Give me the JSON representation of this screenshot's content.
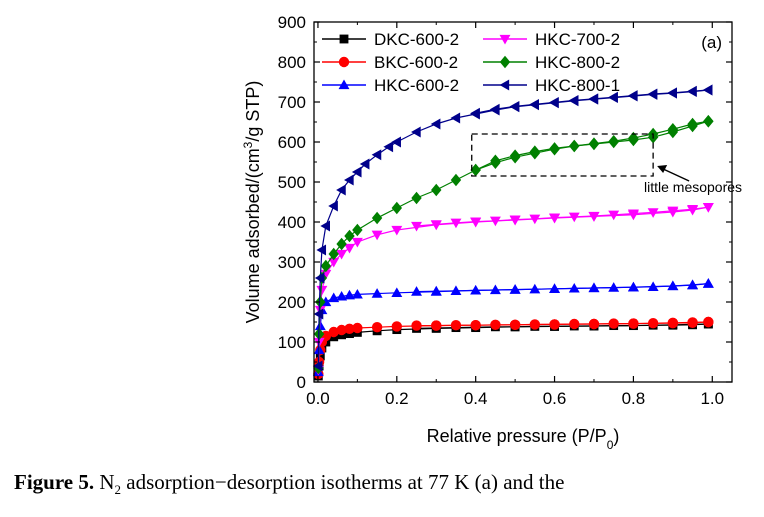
{
  "chart_data": {
    "type": "scatter",
    "xlabel": "Relative pressure (P/P0)",
    "ylabel": "Volume adsorbed/(cm3/g STP)",
    "xlim": [
      -0.01,
      1.05
    ],
    "ylim": [
      0,
      900
    ],
    "xticks": [
      "0.0",
      "0.2",
      "0.4",
      "0.6",
      "0.8",
      "1.0"
    ],
    "yticks": [
      "0",
      "100",
      "200",
      "300",
      "400",
      "500",
      "600",
      "700",
      "800",
      "900"
    ],
    "panel_label": "(a)",
    "annotation": "little mesopores",
    "annotation_box": {
      "x": [
        0.39,
        0.85
      ],
      "y": [
        515,
        620
      ]
    },
    "legend_position": "top-left",
    "series": [
      {
        "name": "DKC-600-2",
        "marker": "square",
        "color": "#000000",
        "adsorption": {
          "x": [
            0.001,
            0.003,
            0.006,
            0.01,
            0.02,
            0.04,
            0.06,
            0.08,
            0.1,
            0.15,
            0.2,
            0.3,
            0.4,
            0.5,
            0.6,
            0.7,
            0.8,
            0.9,
            0.95,
            0.99
          ],
          "y": [
            15,
            40,
            65,
            85,
            100,
            113,
            118,
            121,
            124,
            128,
            131,
            134,
            136,
            138,
            139,
            140,
            141,
            142,
            143,
            145
          ]
        },
        "desorption": {
          "x": [
            0.99,
            0.95,
            0.9,
            0.85,
            0.8,
            0.75,
            0.7,
            0.65,
            0.6,
            0.55,
            0.5,
            0.45,
            0.4,
            0.35,
            0.3,
            0.25
          ],
          "y": [
            145,
            144,
            143,
            142,
            141,
            141,
            140,
            140,
            139,
            139,
            138,
            138,
            137,
            136,
            135,
            134
          ]
        }
      },
      {
        "name": "BKC-600-2",
        "marker": "circle",
        "color": "#ff0000",
        "adsorption": {
          "x": [
            0.001,
            0.003,
            0.006,
            0.01,
            0.02,
            0.04,
            0.06,
            0.08,
            0.1,
            0.15,
            0.2,
            0.3,
            0.4,
            0.5,
            0.6,
            0.7,
            0.8,
            0.9,
            0.95,
            0.99
          ],
          "y": [
            20,
            50,
            80,
            100,
            115,
            125,
            130,
            133,
            135,
            137,
            139,
            141,
            142,
            143,
            144,
            145,
            146,
            147,
            148,
            150
          ]
        },
        "desorption": {
          "x": [
            0.99,
            0.95,
            0.9,
            0.85,
            0.8,
            0.75,
            0.7,
            0.65,
            0.6,
            0.55,
            0.5,
            0.45,
            0.4,
            0.35,
            0.3,
            0.25
          ],
          "y": [
            150,
            149,
            148,
            147,
            146,
            146,
            145,
            145,
            144,
            144,
            143,
            143,
            142,
            142,
            141,
            141
          ]
        }
      },
      {
        "name": "HKC-600-2",
        "marker": "triangle-up",
        "color": "#0000ff",
        "adsorption": {
          "x": [
            0.001,
            0.003,
            0.006,
            0.01,
            0.02,
            0.04,
            0.06,
            0.08,
            0.1,
            0.15,
            0.2,
            0.3,
            0.4,
            0.5,
            0.6,
            0.7,
            0.8,
            0.9,
            0.95,
            0.99
          ],
          "y": [
            25,
            80,
            140,
            180,
            200,
            210,
            214,
            217,
            219,
            221,
            223,
            226,
            229,
            231,
            233,
            235,
            237,
            240,
            242,
            246
          ]
        },
        "desorption": {
          "x": [
            0.99,
            0.95,
            0.9,
            0.85,
            0.8,
            0.75,
            0.7,
            0.65,
            0.6,
            0.55,
            0.5,
            0.45,
            0.4,
            0.35,
            0.3,
            0.25
          ],
          "y": [
            246,
            243,
            240,
            238,
            237,
            236,
            235,
            234,
            233,
            232,
            231,
            230,
            229,
            228,
            227,
            226
          ]
        }
      },
      {
        "name": "HKC-700-2",
        "marker": "triangle-down",
        "color": "#ff00ff",
        "adsorption": {
          "x": [
            0.001,
            0.003,
            0.006,
            0.01,
            0.02,
            0.04,
            0.06,
            0.08,
            0.1,
            0.15,
            0.2,
            0.3,
            0.4,
            0.5,
            0.6,
            0.7,
            0.8,
            0.9,
            0.95,
            0.99
          ],
          "y": [
            30,
            100,
            180,
            230,
            270,
            300,
            320,
            335,
            350,
            368,
            380,
            393,
            400,
            405,
            410,
            414,
            418,
            425,
            430,
            437
          ]
        },
        "desorption": {
          "x": [
            0.99,
            0.95,
            0.9,
            0.85,
            0.8,
            0.75,
            0.7,
            0.65,
            0.6,
            0.55,
            0.5,
            0.45,
            0.4,
            0.35,
            0.3,
            0.25
          ],
          "y": [
            437,
            432,
            428,
            424,
            421,
            418,
            415,
            413,
            411,
            408,
            406,
            403,
            401,
            398,
            394,
            390
          ]
        }
      },
      {
        "name": "HKC-800-2",
        "marker": "diamond",
        "color": "#008000",
        "adsorption": {
          "x": [
            0.001,
            0.003,
            0.006,
            0.01,
            0.02,
            0.04,
            0.06,
            0.08,
            0.1,
            0.15,
            0.2,
            0.25,
            0.3,
            0.35,
            0.4,
            0.45,
            0.5,
            0.55,
            0.6,
            0.65,
            0.7,
            0.75,
            0.8,
            0.85,
            0.9,
            0.95,
            0.99
          ],
          "y": [
            35,
            120,
            200,
            260,
            290,
            320,
            345,
            365,
            380,
            410,
            435,
            460,
            480,
            505,
            530,
            548,
            562,
            572,
            582,
            590,
            595,
            600,
            605,
            612,
            625,
            640,
            652
          ]
        },
        "desorption": {
          "x": [
            0.99,
            0.95,
            0.9,
            0.85,
            0.8,
            0.75,
            0.7,
            0.65,
            0.6,
            0.55,
            0.5,
            0.45,
            0.4
          ],
          "y": [
            652,
            645,
            632,
            620,
            610,
            602,
            596,
            590,
            584,
            576,
            566,
            553,
            530
          ]
        }
      },
      {
        "name": "HKC-800-1",
        "marker": "triangle-left",
        "color": "#00008b",
        "adsorption": {
          "x": [
            0.001,
            0.003,
            0.006,
            0.01,
            0.02,
            0.04,
            0.06,
            0.08,
            0.1,
            0.12,
            0.15,
            0.18,
            0.2,
            0.25,
            0.3,
            0.35,
            0.4,
            0.45,
            0.5,
            0.55,
            0.6,
            0.65,
            0.7,
            0.75,
            0.8,
            0.85,
            0.9,
            0.95,
            0.99
          ],
          "y": [
            40,
            170,
            260,
            330,
            390,
            440,
            480,
            505,
            525,
            545,
            568,
            588,
            600,
            625,
            645,
            660,
            670,
            680,
            688,
            693,
            698,
            703,
            707,
            711,
            715,
            719,
            722,
            726,
            730
          ]
        },
        "desorption": {
          "x": [
            0.99,
            0.95,
            0.9,
            0.85,
            0.8,
            0.75,
            0.7,
            0.65,
            0.6,
            0.55,
            0.5,
            0.45,
            0.4
          ],
          "y": [
            730,
            727,
            723,
            720,
            716,
            712,
            708,
            704,
            699,
            694,
            689,
            682,
            672
          ]
        }
      }
    ]
  },
  "caption": {
    "label": "Figure 5.",
    "text_before_sub": " N",
    "subscript": "2",
    "text_after_sub": " adsorption−desorption isotherms at 77 K (a) and the"
  }
}
